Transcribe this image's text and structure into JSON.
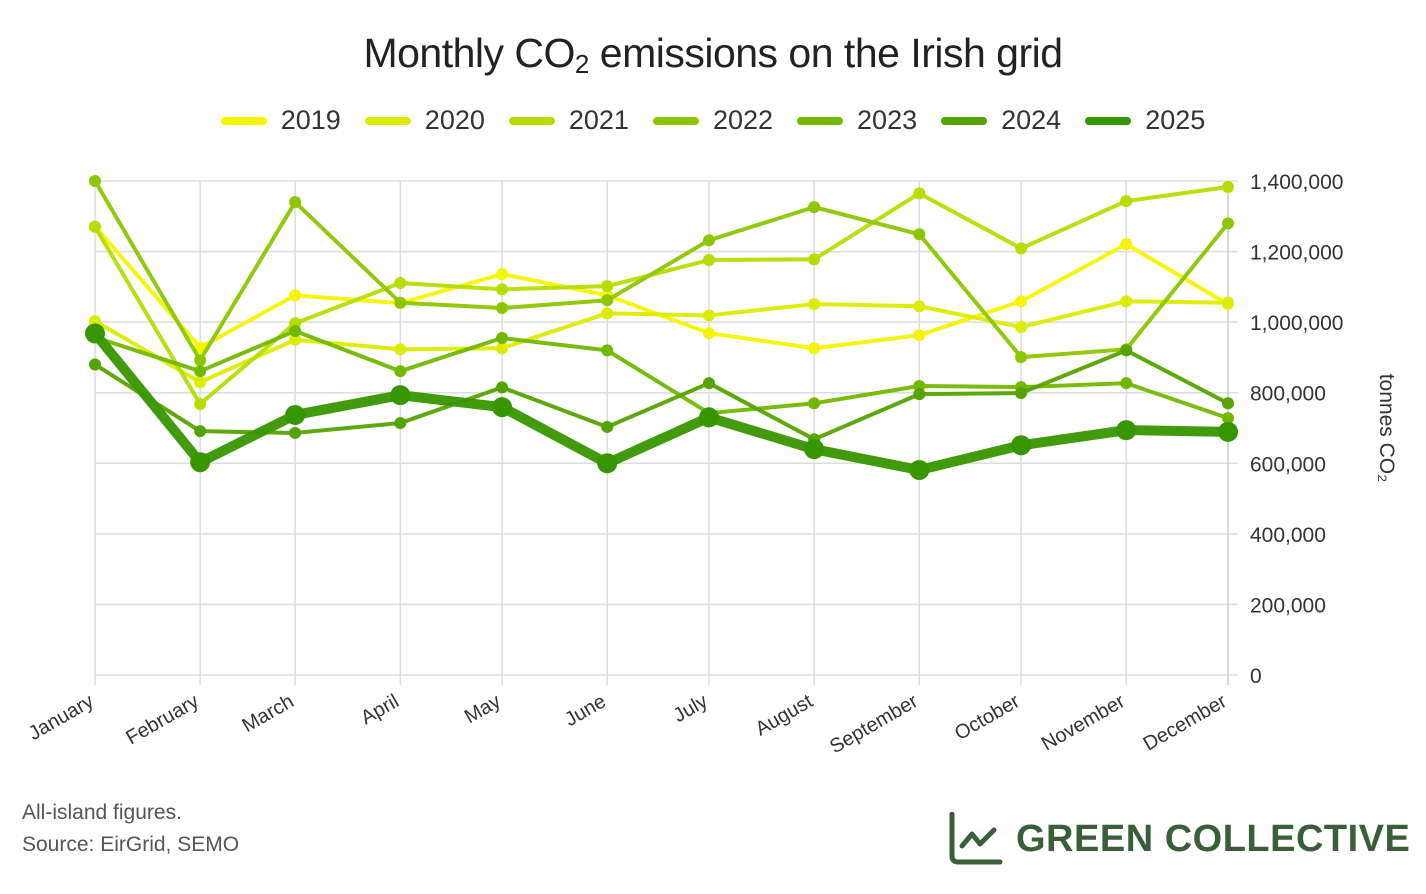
{
  "chart_data": {
    "type": "line",
    "title": "Monthly CO₂ emissions on the Irish grid",
    "title_parts": {
      "pre": "Monthly CO",
      "sub": "2",
      "post": " emissions on the Irish grid"
    },
    "xlabel": "",
    "ylabel": "tonnes CO₂",
    "ylim": [
      0,
      1400000
    ],
    "yticks": [
      0,
      200000,
      400000,
      600000,
      800000,
      1000000,
      1200000,
      1400000
    ],
    "ytick_labels": [
      "0",
      "200,000",
      "400,000",
      "600,000",
      "800,000",
      "1,000,000",
      "1,200,000",
      "1,400,000"
    ],
    "y_axis_side": "right",
    "grid": true,
    "legend_position": "top-center",
    "categories": [
      "January",
      "February",
      "March",
      "April",
      "May",
      "June",
      "July",
      "August",
      "September",
      "October",
      "November",
      "December"
    ],
    "series": [
      {
        "name": "2019",
        "color": "#f5f500",
        "emphasis": false,
        "values": [
          1271000,
          928000,
          1076000,
          1054000,
          1136000,
          1076000,
          969000,
          926000,
          963000,
          1059000,
          1221000,
          1051000
        ]
      },
      {
        "name": "2020",
        "color": "#dcec00",
        "emphasis": false,
        "values": [
          1003000,
          830000,
          950000,
          923000,
          926000,
          1025000,
          1019000,
          1051000,
          1045000,
          986000,
          1059000,
          1055000
        ]
      },
      {
        "name": "2021",
        "color": "#b5dd00",
        "emphasis": false,
        "values": [
          1270000,
          768000,
          997000,
          1111000,
          1093000,
          1102000,
          1176000,
          1178000,
          1365000,
          1209000,
          1343000,
          1383000
        ]
      },
      {
        "name": "2022",
        "color": "#8dc600",
        "emphasis": false,
        "values": [
          1400000,
          892000,
          1340000,
          1055000,
          1040000,
          1062000,
          1232000,
          1326000,
          1249000,
          901000,
          923000,
          1280000
        ]
      },
      {
        "name": "2023",
        "color": "#72b800",
        "emphasis": false,
        "values": [
          957000,
          861000,
          975000,
          861000,
          955000,
          920000,
          742000,
          770000,
          819000,
          816000,
          827000,
          728000
        ]
      },
      {
        "name": "2024",
        "color": "#55a300",
        "emphasis": false,
        "values": [
          880000,
          691000,
          686000,
          714000,
          815000,
          703000,
          827000,
          668000,
          796000,
          799000,
          920000,
          770000
        ]
      },
      {
        "name": "2025",
        "color": "#379600",
        "emphasis": true,
        "values": [
          968000,
          603000,
          737000,
          793000,
          759000,
          600000,
          730000,
          640000,
          581000,
          651000,
          694000,
          689000
        ]
      }
    ]
  },
  "footer": {
    "note": "All-island figures.",
    "source": "Source: EirGrid, SEMO",
    "brand_name": "GREEN COLLECTIVE",
    "brand_icon": "line-chart-icon",
    "brand_color": "#3a5e3a"
  }
}
